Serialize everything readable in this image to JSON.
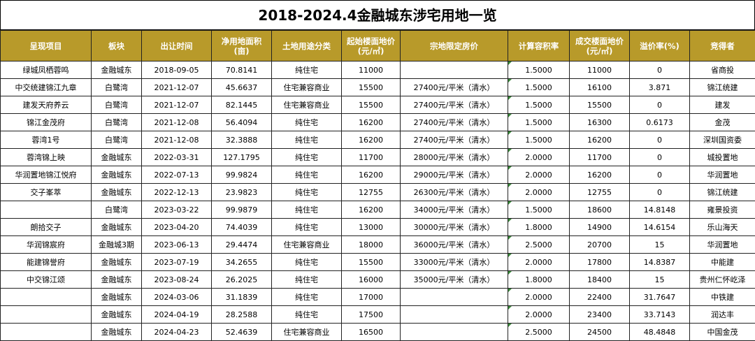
{
  "title": "2018-2024.4金融城东涉宅用地一览",
  "columns": [
    "呈现项目",
    "板块",
    "出让时间",
    "净用地面积\n(亩)",
    "土地用途分类",
    "起始楼面地价\n(元/㎡)",
    "宗地限定房价",
    "计算容积率",
    "成交楼面地价\n(元/㎡)",
    "溢价率(%)",
    "竞得者"
  ],
  "rows": [
    [
      "绿城凤栖蓉鸣",
      "金融城东",
      "2018-09-05",
      "70.8141",
      "纯住宅",
      "11000",
      "",
      "1.5000",
      "11000",
      "0",
      "省商投"
    ],
    [
      "中交统建锦江九章",
      "白鹭湾",
      "2021-12-07",
      "45.6637",
      "住宅兼容商业",
      "15500",
      "27400元/平米（清水）",
      "1.5000",
      "16100",
      "3.871",
      "锦江统建"
    ],
    [
      "建发天府养云",
      "白鹭湾",
      "2021-12-07",
      "82.1445",
      "住宅兼容商业",
      "15500",
      "27400元/平米（清水）",
      "1.5000",
      "15500",
      "0",
      "建发"
    ],
    [
      "锦江金茂府",
      "白鹭湾",
      "2021-12-08",
      "56.4094",
      "纯住宅",
      "16200",
      "27400元/平米（清水）",
      "1.5000",
      "16300",
      "0.6173",
      "金茂"
    ],
    [
      "蓉湾1号",
      "白鹭湾",
      "2021-12-08",
      "32.3888",
      "纯住宅",
      "16200",
      "27400元/平米（清水）",
      "1.5000",
      "16200",
      "0",
      "深圳国资委"
    ],
    [
      "蓉湾锦上映",
      "金融城东",
      "2022-03-31",
      "127.1795",
      "纯住宅",
      "11700",
      "28000元/平米（清水）",
      "2.0000",
      "11700",
      "0",
      "城投置地"
    ],
    [
      "华润置地锦江悦府",
      "金融城东",
      "2022-07-13",
      "99.9824",
      "纯住宅",
      "16200",
      "29000元/平米（清水）",
      "2.0000",
      "16200",
      "0",
      "华润置地"
    ],
    [
      "交子峯萃",
      "金融城东",
      "2022-12-13",
      "23.9823",
      "纯住宅",
      "12755",
      "26300元/平米（清水）",
      "2.0000",
      "12755",
      "0",
      "锦江统建"
    ],
    [
      "",
      "白鹭湾",
      "2023-03-22",
      "99.9879",
      "纯住宅",
      "16200",
      "34000元/平米（清水）",
      "1.5000",
      "18600",
      "14.8148",
      "雍景投资"
    ],
    [
      "朗拾交子",
      "金融城东",
      "2023-04-20",
      "74.4039",
      "纯住宅",
      "13000",
      "30000元/平米（清水）",
      "1.8000",
      "14900",
      "14.6154",
      "乐山海天"
    ],
    [
      "华润锦宸府",
      "金融城3期",
      "2023-06-13",
      "29.4474",
      "住宅兼容商业",
      "18000",
      "36000元/平米（清水）",
      "2.5000",
      "20700",
      "15",
      "华润置地"
    ],
    [
      "能建锦誉府",
      "金融城东",
      "2023-07-19",
      "34.2655",
      "纯住宅",
      "15500",
      "33000元/平米（清水）",
      "2.0000",
      "17800",
      "14.8387",
      "中能建"
    ],
    [
      "中交锦江颂",
      "金融城东",
      "2023-08-24",
      "26.2025",
      "纯住宅",
      "16000",
      "35000元/平米（清水）",
      "1.8000",
      "18400",
      "15",
      "贵州仁怀屹泽"
    ],
    [
      "",
      "金融城东",
      "2024-03-06",
      "31.1839",
      "纯住宅",
      "17000",
      "",
      "2.0000",
      "22400",
      "31.7647",
      "中铁建"
    ],
    [
      "",
      "金融城东",
      "2024-04-19",
      "28.2588",
      "纯住宅",
      "17500",
      "",
      "2.0000",
      "23400",
      "33.7143",
      "润达丰"
    ],
    [
      "",
      "金融城东",
      "2024-04-23",
      "52.4639",
      "住宅兼容商业",
      "16500",
      "",
      "2.5000",
      "24500",
      "48.4848",
      "中国金茂"
    ]
  ],
  "colors": {
    "header_bg": "#b89a2a",
    "header_text": "#ffffff",
    "cell_marker": "#3a8a3a"
  }
}
